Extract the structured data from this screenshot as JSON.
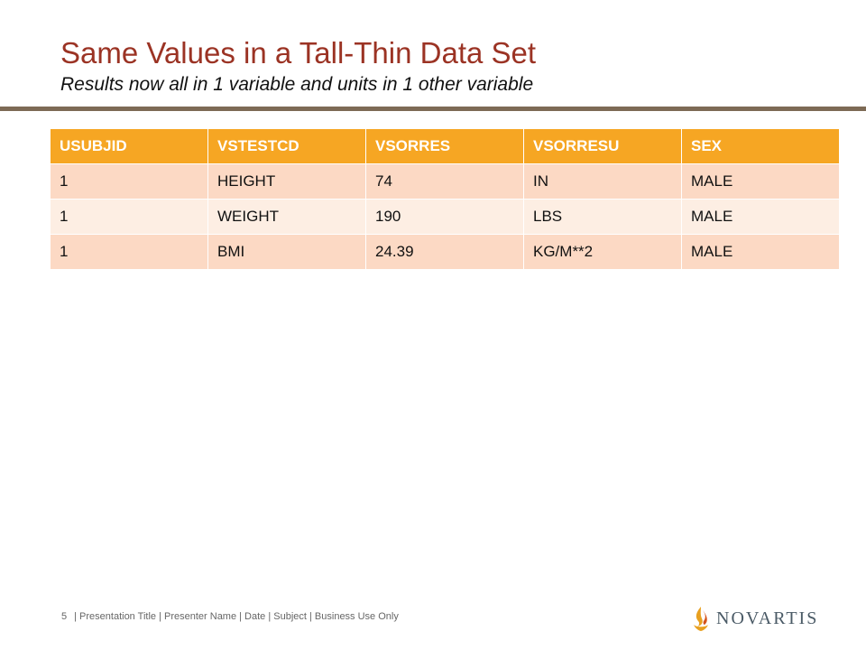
{
  "slide": {
    "title": "Same Values in a Tall-Thin Data Set",
    "subtitle": "Results now all in 1 variable and units in 1 other variable"
  },
  "table": {
    "headers": [
      "USUBJID",
      "VSTESTCD",
      "VSORRES",
      "VSORRESU",
      "SEX"
    ],
    "rows": [
      [
        "1",
        "HEIGHT",
        "74",
        "IN",
        "MALE"
      ],
      [
        "1",
        "WEIGHT",
        "190",
        "LBS",
        "MALE"
      ],
      [
        "1",
        "BMI",
        "24.39",
        "KG/M**2",
        "MALE"
      ]
    ]
  },
  "footer": {
    "page_number": "5",
    "text": "| Presentation Title | Presenter Name | Date | Subject | Business Use Only"
  },
  "logo": {
    "wordmark": "NOVARTIS",
    "icon": "novartis-flame-icon"
  },
  "colors": {
    "title": "#9b3324",
    "rule": "#7d6a55",
    "header_bg": "#f6a623",
    "row_odd": "#fcd9c4",
    "row_even": "#fdeee3"
  }
}
